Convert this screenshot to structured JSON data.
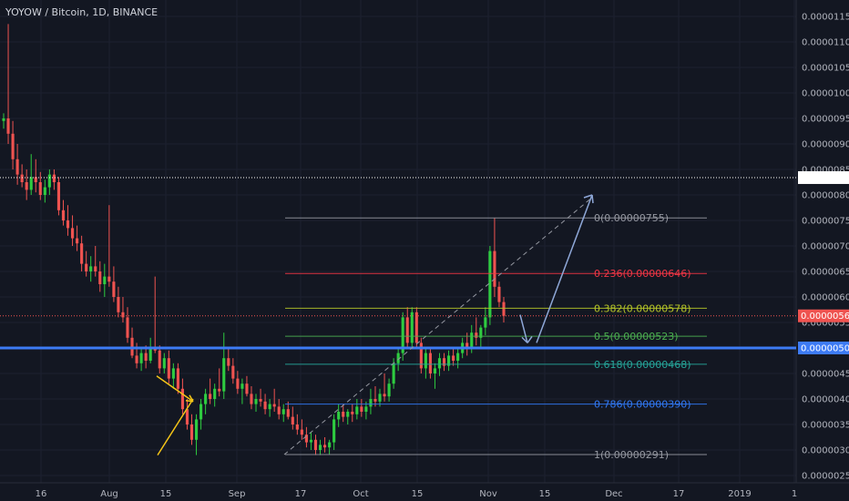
{
  "title": "YOYOW / Bitcoin, 1D, BINANCE",
  "colors": {
    "background": "#131722",
    "up": "#26a69a",
    "up_bright": "#2ecc40",
    "down": "#ef5350",
    "support": "#3d7bf5",
    "current": "#ef5350",
    "dotted": "#ffffff",
    "grid": "#1c2030"
  },
  "chart_data": {
    "type": "candlestick",
    "title": "YOYOW / Bitcoin, 1D, BINANCE",
    "ylim": [
      2.5e-06,
      1.17e-06
    ],
    "x_ticks": [
      "16",
      "Aug",
      "15",
      "Sep",
      "17",
      "Oct",
      "15",
      "Nov",
      "15",
      "Dec",
      "17",
      "2019",
      "1"
    ],
    "y_ticks": [
      "0.00001150",
      "0.00001100",
      "0.00001050",
      "0.00001000",
      "0.00000950",
      "0.00000900",
      "0.00000850",
      "0.00000800",
      "0.00000750",
      "0.00000700",
      "0.00000650",
      "0.00000600",
      "0.00000550",
      "0.00000500",
      "0.00000450",
      "0.00000400",
      "0.00000350",
      "0.00000300",
      "0.00000250"
    ],
    "price_labels": [
      {
        "label": "0.00000834",
        "value": 834,
        "kind": "dotted-line"
      },
      {
        "label": "0.00000563",
        "value": 563,
        "kind": "current-price"
      },
      {
        "label": "0.00000500",
        "value": 500,
        "kind": "support"
      }
    ],
    "fibonacci": [
      {
        "label": "0(0.00000755)",
        "value": 755,
        "color": "#9598a1"
      },
      {
        "label": "0.236(0.00000646)",
        "value": 646,
        "color": "#f23645"
      },
      {
        "label": "0.382(0.00000578)",
        "value": 578,
        "color": "#b5c427"
      },
      {
        "label": "0.5(0.00000523)",
        "value": 523,
        "color": "#4caf50"
      },
      {
        "label": "0.618(0.00000468)",
        "value": 468,
        "color": "#26a69a"
      },
      {
        "label": "0.786(0.00000390)",
        "value": 390,
        "color": "#3179f5"
      },
      {
        "label": "1(0.00000291)",
        "value": 291,
        "color": "#9598a1"
      }
    ],
    "candles_unit": "1e-8 BTC",
    "candles": [
      [
        945,
        960,
        930,
        950
      ],
      [
        950,
        1135,
        900,
        920
      ],
      [
        920,
        945,
        850,
        870
      ],
      [
        870,
        900,
        820,
        840
      ],
      [
        840,
        860,
        815,
        825
      ],
      [
        825,
        850,
        790,
        810
      ],
      [
        810,
        880,
        800,
        835
      ],
      [
        835,
        870,
        805,
        825
      ],
      [
        825,
        845,
        790,
        800
      ],
      [
        800,
        830,
        785,
        815
      ],
      [
        815,
        850,
        800,
        840
      ],
      [
        840,
        850,
        810,
        825
      ],
      [
        825,
        835,
        760,
        770
      ],
      [
        770,
        790,
        740,
        750
      ],
      [
        750,
        780,
        720,
        735
      ],
      [
        735,
        760,
        700,
        715
      ],
      [
        715,
        740,
        690,
        705
      ],
      [
        705,
        720,
        650,
        665
      ],
      [
        665,
        690,
        640,
        650
      ],
      [
        650,
        680,
        630,
        660
      ],
      [
        660,
        700,
        640,
        650
      ],
      [
        650,
        670,
        610,
        625
      ],
      [
        625,
        665,
        600,
        640
      ],
      [
        640,
        780,
        620,
        630
      ],
      [
        630,
        660,
        590,
        600
      ],
      [
        600,
        620,
        560,
        570
      ],
      [
        570,
        600,
        550,
        560
      ],
      [
        560,
        580,
        510,
        520
      ],
      [
        520,
        540,
        480,
        485
      ],
      [
        485,
        510,
        460,
        470
      ],
      [
        470,
        500,
        455,
        490
      ],
      [
        490,
        505,
        460,
        475
      ],
      [
        475,
        520,
        470,
        500
      ],
      [
        500,
        640,
        490,
        495
      ],
      [
        495,
        505,
        450,
        460
      ],
      [
        460,
        490,
        450,
        480
      ],
      [
        480,
        495,
        430,
        440
      ],
      [
        440,
        470,
        420,
        460
      ],
      [
        460,
        470,
        410,
        420
      ],
      [
        420,
        440,
        370,
        380
      ],
      [
        380,
        400,
        340,
        350
      ],
      [
        350,
        370,
        310,
        320
      ],
      [
        320,
        370,
        290,
        360
      ],
      [
        360,
        400,
        340,
        390
      ],
      [
        390,
        420,
        370,
        410
      ],
      [
        410,
        440,
        390,
        400
      ],
      [
        400,
        430,
        385,
        420
      ],
      [
        420,
        460,
        405,
        415
      ],
      [
        415,
        530,
        400,
        480
      ],
      [
        480,
        500,
        455,
        465
      ],
      [
        465,
        480,
        430,
        440
      ],
      [
        440,
        455,
        410,
        420
      ],
      [
        420,
        440,
        390,
        430
      ],
      [
        430,
        445,
        405,
        410
      ],
      [
        410,
        425,
        380,
        390
      ],
      [
        390,
        410,
        375,
        400
      ],
      [
        400,
        420,
        385,
        395
      ],
      [
        395,
        410,
        370,
        380
      ],
      [
        380,
        400,
        365,
        390
      ],
      [
        390,
        420,
        375,
        385
      ],
      [
        385,
        400,
        360,
        370
      ],
      [
        370,
        390,
        355,
        380
      ],
      [
        380,
        395,
        360,
        365
      ],
      [
        365,
        385,
        340,
        350
      ],
      [
        350,
        370,
        330,
        340
      ],
      [
        340,
        360,
        320,
        330
      ],
      [
        330,
        345,
        305,
        315
      ],
      [
        315,
        335,
        300,
        320
      ],
      [
        320,
        330,
        290,
        300
      ],
      [
        300,
        320,
        290,
        310
      ],
      [
        310,
        325,
        295,
        305
      ],
      [
        305,
        320,
        291,
        315
      ],
      [
        315,
        370,
        300,
        360
      ],
      [
        360,
        390,
        345,
        375
      ],
      [
        375,
        390,
        355,
        365
      ],
      [
        365,
        380,
        350,
        375
      ],
      [
        375,
        390,
        355,
        370
      ],
      [
        370,
        400,
        360,
        385
      ],
      [
        385,
        400,
        365,
        375
      ],
      [
        375,
        395,
        360,
        385
      ],
      [
        385,
        420,
        370,
        400
      ],
      [
        400,
        425,
        385,
        395
      ],
      [
        395,
        420,
        385,
        410
      ],
      [
        410,
        450,
        395,
        405
      ],
      [
        405,
        440,
        395,
        430
      ],
      [
        430,
        480,
        420,
        470
      ],
      [
        470,
        500,
        455,
        490
      ],
      [
        490,
        570,
        475,
        560
      ],
      [
        560,
        580,
        500,
        510
      ],
      [
        510,
        580,
        500,
        570
      ],
      [
        570,
        580,
        500,
        510
      ],
      [
        510,
        520,
        450,
        460
      ],
      [
        460,
        500,
        440,
        490
      ],
      [
        490,
        500,
        440,
        450
      ],
      [
        450,
        470,
        420,
        460
      ],
      [
        460,
        490,
        445,
        480
      ],
      [
        480,
        490,
        455,
        465
      ],
      [
        465,
        495,
        455,
        485
      ],
      [
        485,
        500,
        465,
        475
      ],
      [
        475,
        500,
        460,
        490
      ],
      [
        490,
        520,
        480,
        510
      ],
      [
        510,
        530,
        485,
        500
      ],
      [
        500,
        545,
        490,
        530
      ],
      [
        530,
        560,
        505,
        520
      ],
      [
        520,
        545,
        500,
        540
      ],
      [
        540,
        580,
        525,
        560
      ],
      [
        560,
        700,
        545,
        690
      ],
      [
        690,
        755,
        600,
        620
      ],
      [
        620,
        630,
        580,
        590
      ],
      [
        590,
        600,
        550,
        563
      ]
    ]
  }
}
